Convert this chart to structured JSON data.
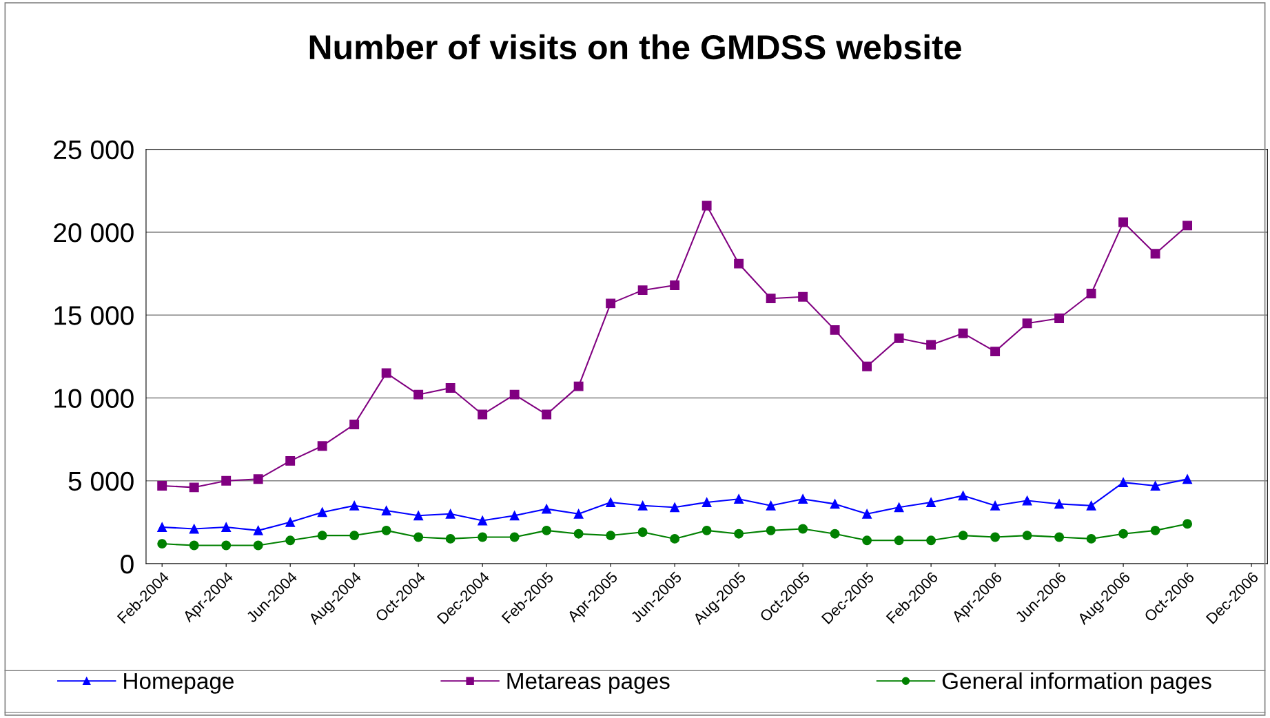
{
  "chart_data": {
    "type": "line",
    "title": "Number of visits on the GMDSS website",
    "categories": [
      "Feb-2004",
      null,
      "Apr-2004",
      null,
      "Jun-2004",
      null,
      "Aug-2004",
      null,
      "Oct-2004",
      null,
      "Dec-2004",
      null,
      "Feb-2005",
      null,
      "Apr-2005",
      null,
      "Jun-2005",
      null,
      "Aug-2005",
      null,
      "Oct-2005",
      null,
      "Dec-2005",
      null,
      "Feb-2006",
      null,
      "Apr-2006",
      null,
      "Jun-2006",
      null,
      "Aug-2006",
      null,
      "Oct-2006",
      null,
      "Dec-2006"
    ],
    "series": [
      {
        "name": "Homepage",
        "color": "#0000ff",
        "marker": "triangle",
        "values": [
          2200,
          2100,
          2200,
          2000,
          2500,
          3100,
          3500,
          3200,
          2900,
          3000,
          2600,
          2900,
          3300,
          3000,
          3700,
          3500,
          3400,
          3700,
          3900,
          3500,
          3900,
          3600,
          3000,
          3400,
          3700,
          4100,
          3500,
          3800,
          3600,
          3500,
          4900,
          4700,
          5100,
          null,
          null
        ]
      },
      {
        "name": "Metareas pages",
        "color": "#800080",
        "marker": "square",
        "values": [
          4700,
          4600,
          5000,
          5100,
          6200,
          7100,
          8400,
          11500,
          10200,
          10600,
          9000,
          10200,
          9000,
          10700,
          15700,
          16500,
          16800,
          21600,
          18100,
          16000,
          16100,
          14100,
          11900,
          13600,
          13200,
          13900,
          12800,
          14500,
          14800,
          16300,
          20600,
          18700,
          20400,
          null,
          null
        ]
      },
      {
        "name": "General information pages",
        "color": "#008000",
        "marker": "circle",
        "values": [
          1200,
          1100,
          1100,
          1100,
          1400,
          1700,
          1700,
          2000,
          1600,
          1500,
          1600,
          1600,
          2000,
          1800,
          1700,
          1900,
          1500,
          2000,
          1800,
          2000,
          2100,
          1800,
          1400,
          1400,
          1400,
          1700,
          1600,
          1700,
          1600,
          1500,
          1800,
          2000,
          2400,
          null,
          null
        ]
      }
    ],
    "ylim": [
      0,
      25000
    ],
    "yticks": [
      {
        "value": 0,
        "label": "0"
      },
      {
        "value": 5000,
        "label": "5 000"
      },
      {
        "value": 10000,
        "label": "10 000"
      },
      {
        "value": 15000,
        "label": "15 000"
      },
      {
        "value": 20000,
        "label": "20 000"
      },
      {
        "value": 25000,
        "label": "25 000"
      }
    ],
    "grid": "y",
    "legend": "bottom",
    "line_style": "solid"
  }
}
